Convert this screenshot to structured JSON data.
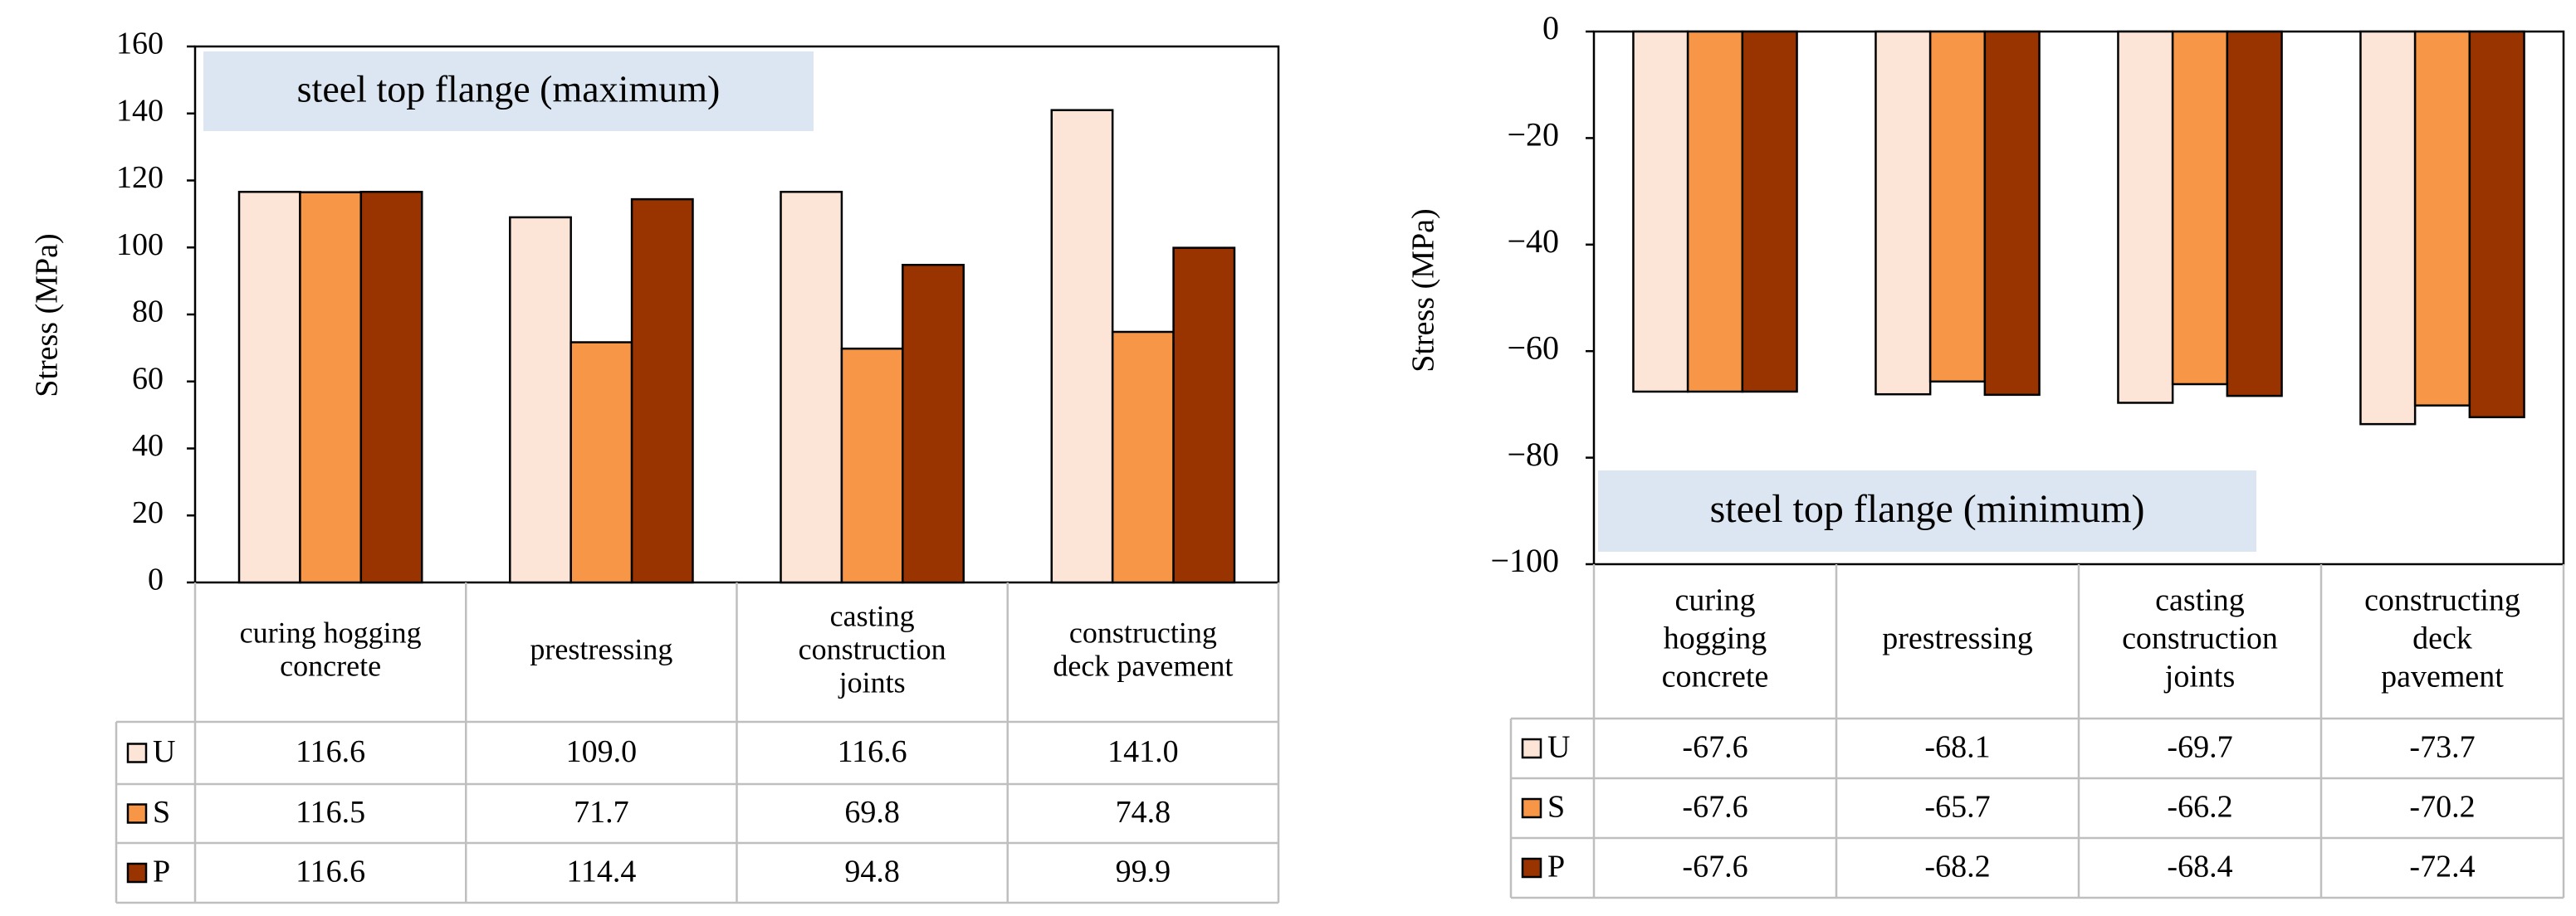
{
  "chart_data": [
    {
      "type": "bar",
      "title": "steel top flange (maximum)",
      "xlabel": "",
      "ylabel": "Stress  (MPa)",
      "ylim": [
        0,
        160
      ],
      "yticks": [
        0,
        20,
        40,
        60,
        80,
        100,
        120,
        140,
        160
      ],
      "grid": false,
      "legend": "data-table",
      "categories": [
        "curing hogging\nconcrete",
        "prestressing",
        "casting\nconstruction\njoints",
        "constructing\ndeck pavement"
      ],
      "series": [
        {
          "name": "U",
          "color": "#fce4d6",
          "values": [
            116.6,
            109.0,
            116.6,
            141.0
          ],
          "labels": [
            "116.6",
            "109.0",
            "116.6",
            "141.0"
          ]
        },
        {
          "name": "S",
          "color": "#f79646",
          "values": [
            116.5,
            71.7,
            69.8,
            74.8
          ],
          "labels": [
            "116.5",
            "71.7",
            "69.8",
            "74.8"
          ]
        },
        {
          "name": "P",
          "color": "#993300",
          "values": [
            116.6,
            114.4,
            94.8,
            99.9
          ],
          "labels": [
            "116.6",
            "114.4",
            "94.8",
            "99.9"
          ]
        }
      ]
    },
    {
      "type": "bar",
      "title": "steel top flange (minimum)",
      "xlabel": "",
      "ylabel": "Stress  (MPa)",
      "ylim": [
        -100,
        0
      ],
      "yticks": [
        0,
        -20,
        -40,
        -60,
        -80,
        -100
      ],
      "ytick_labels": [
        "0",
        "−20",
        "−40",
        "−60",
        "−80",
        "−100"
      ],
      "grid": false,
      "legend": "data-table",
      "categories": [
        "curing\nhogging\nconcrete",
        "prestressing",
        "casting\nconstruction\njoints",
        "constructing\ndeck\npavement"
      ],
      "series": [
        {
          "name": "U",
          "color": "#fce4d6",
          "values": [
            -67.6,
            -68.1,
            -69.7,
            -73.7
          ],
          "labels": [
            "-67.6",
            "-68.1",
            "-69.7",
            "-73.7"
          ]
        },
        {
          "name": "S",
          "color": "#f79646",
          "values": [
            -67.6,
            -65.7,
            -66.2,
            -70.2
          ],
          "labels": [
            "-67.6",
            "-65.7",
            "-66.2",
            "-70.2"
          ]
        },
        {
          "name": "P",
          "color": "#993300",
          "values": [
            -67.6,
            -68.2,
            -68.4,
            -72.4
          ],
          "labels": [
            "-67.6",
            "-68.2",
            "-68.4",
            "-72.4"
          ]
        }
      ]
    }
  ]
}
